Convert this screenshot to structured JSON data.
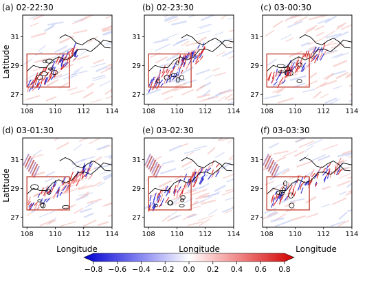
{
  "chart_data": {
    "type": "heatmap",
    "xlabel": "Longitude",
    "ylabel": "Latitude",
    "x_ticks": [
      "108",
      "110",
      "112",
      "114"
    ],
    "y_ticks": [
      "27",
      "29",
      "31"
    ],
    "x_range": [
      107.7,
      114
    ],
    "y_range": [
      26.3,
      32.5
    ],
    "highlight_box": {
      "lon": [
        108.0,
        111.0
      ],
      "lat": [
        27.5,
        29.8
      ]
    },
    "highlight_color": "#c0392b",
    "panels": [
      {
        "label": "(a) 02-22:30",
        "band_shift": 0.0
      },
      {
        "label": "(b) 02-23:30",
        "band_shift": 0.3
      },
      {
        "label": "(c) 03-00:30",
        "band_shift": 0.6
      },
      {
        "label": "(d) 03-01:30",
        "band_shift": 1.0
      },
      {
        "label": "(e) 03-02:30",
        "band_shift": 1.3
      },
      {
        "label": "(f) 03-03:30",
        "band_shift": 1.6
      }
    ],
    "colorbar": {
      "ticks": [
        "−0.8",
        "−0.6",
        "−0.4",
        "−0.2",
        "0.0",
        "0.2",
        "0.4",
        "0.6",
        "0.8"
      ],
      "range": [
        -0.8,
        0.8
      ],
      "colors": [
        "#0000cc",
        "#ffffff",
        "#cc0000"
      ]
    }
  }
}
